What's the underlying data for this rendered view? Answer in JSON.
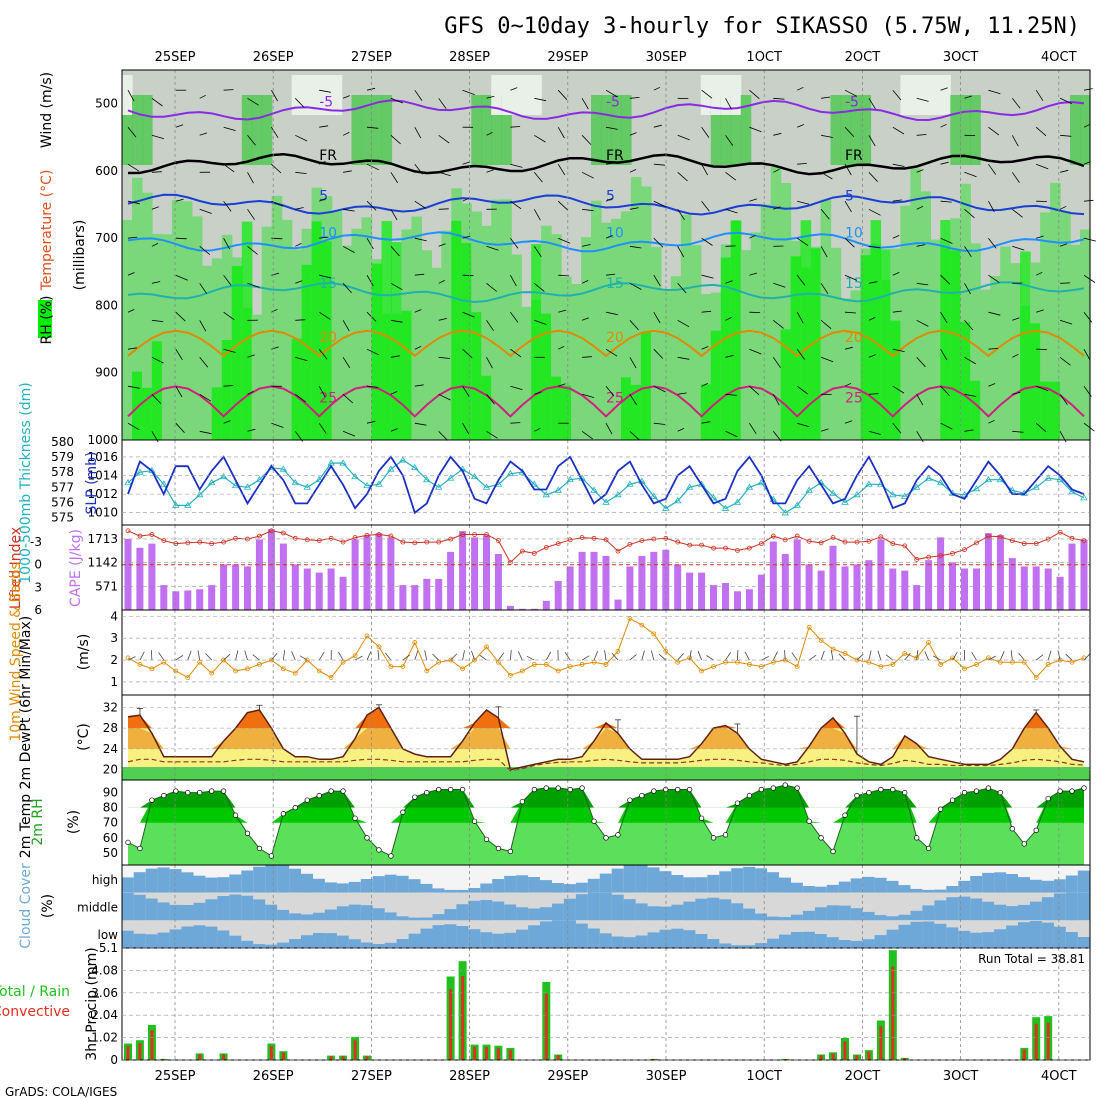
{
  "title": "GFS 0~10day 3-hourly for SIKASSO (5.75W, 11.25N)",
  "credit": "GrADS: COLA/IGES",
  "days": [
    "25SEP",
    "26SEP",
    "27SEP",
    "28SEP",
    "29SEP",
    "30SEP",
    "1OCT",
    "2OCT",
    "3OCT",
    "4OCT"
  ],
  "colors": {
    "rh_light": "#e8f0e8",
    "rh_gray": "#c8d0c8",
    "rh_mid": "#7ad87a",
    "rh_green": "#4cc84c",
    "rh_bright": "#00ee00",
    "t_m5": "#8a2be2",
    "t_fr": "#000000",
    "t_5": "#1a3fd4",
    "t_10": "#1e90ff",
    "t_15": "#20b2aa",
    "t_20": "#e08a00",
    "t_25": "#d02080",
    "slp": "#1a2fc4",
    "thick": "#20b0c0",
    "cape": "#c070f0",
    "li": "#d03020",
    "wind": "#e08a00",
    "temp_fill_hot": "#f07010",
    "temp_fill_warm": "#f0b040",
    "temp_fill_mild": "#f8f080",
    "rh_fill_dark": "#00a000",
    "rh_fill_mid": "#00c800",
    "rh_fill_light": "#5ce05c",
    "cloud_blue": "#6ea8d8",
    "cloud_gray": "#d8d8d8",
    "cloud_white": "#f4f4f4",
    "precip_total": "#20c020",
    "precip_conv": "#e03020"
  },
  "panels": {
    "upper": {
      "ylabels": [
        {
          "text": "RH (%)",
          "color": "#20a020"
        },
        {
          "text": "Temperature (°C)",
          "color": "#e05020"
        },
        {
          "text": "Wind (m/s)",
          "color": "#000000"
        }
      ],
      "axis_title": "(millibars)",
      "yticks": [
        500,
        600,
        700,
        800,
        900,
        1000
      ],
      "contours": [
        {
          "label": "-5",
          "key": "t_m5",
          "level": 510
        },
        {
          "label": "FR",
          "key": "t_fr",
          "level": 590
        },
        {
          "label": "5",
          "key": "t_5",
          "level": 650
        },
        {
          "label": "10",
          "key": "t_10",
          "level": 705
        },
        {
          "label": "15",
          "key": "t_15",
          "level": 780
        },
        {
          "label": "20",
          "key": "t_20",
          "level": 860
        },
        {
          "label": "25",
          "key": "t_25",
          "level": 950
        }
      ]
    },
    "thickness": {
      "ylabel_left": "1000-500mb Thickness (dm)",
      "ylabel_right": "SLP (mb)",
      "yticks_left": [
        575,
        576,
        577,
        578,
        579,
        580
      ],
      "yticks_right": [
        1010,
        1012,
        1014,
        1016
      ]
    },
    "instability": {
      "ylabel_left": "Lifted Index",
      "ylabel_right": "CAPE (J/kg)",
      "yticks_li": [
        -3,
        0,
        3,
        6
      ],
      "yticks_cape": [
        571,
        1142,
        1713
      ]
    },
    "wind10m": {
      "ylabel": "10m Wind Speed & Barbs",
      "unit": "(m/s)",
      "yticks": [
        1,
        2,
        3,
        4
      ]
    },
    "temperature": {
      "ylabel": "2m Temp 2m DewPt (6hr Min/Max)",
      "unit": "(°C)",
      "yticks": [
        20,
        24,
        28,
        32
      ]
    },
    "rh2m": {
      "ylabel": "2m RH",
      "unit": "(%)",
      "yticks": [
        50,
        60,
        70,
        80,
        90
      ]
    },
    "cloud": {
      "ylabel": "Cloud Cover",
      "unit": "(%)",
      "rows": [
        "high",
        "middle",
        "low"
      ]
    },
    "precip": {
      "ylabel_total": "Total / Rain",
      "ylabel_conv": "Convective",
      "axis_title": "3hr Precip (mm)",
      "yticks": [
        0,
        1.02,
        2.04,
        3.06,
        4.08,
        5.1
      ],
      "run_total": "Run Total = 38.81"
    }
  },
  "chart_data": {
    "type": "meteogram",
    "time_step_hours": 3,
    "slp_mb": [
      1012.0,
      1015.5,
      1014.5,
      1012.0,
      1015.0,
      1015.0,
      1012.5,
      1014.5,
      1016.0,
      1013.5,
      1011.0,
      1013.0,
      1015.0,
      1013.5,
      1011.0,
      1011.0,
      1013.0,
      1015.0,
      1013.0,
      1010.5,
      1012.0,
      1014.5,
      1016.0,
      1014.0,
      1010.0,
      1011.0,
      1014.0,
      1016.0,
      1014.5,
      1011.5,
      1011.0,
      1013.5,
      1015.5,
      1014.5,
      1012.5,
      1012.5,
      1015.0,
      1016.0,
      1013.5,
      1011.0,
      1012.0,
      1014.5,
      1015.5,
      1013.0,
      1011.0,
      1011.5,
      1014.0,
      1015.0,
      1013.0,
      1011.0,
      1011.5,
      1014.5,
      1016.0,
      1014.0,
      1011.0,
      1011.0,
      1013.5,
      1015.0,
      1013.0,
      1011.0,
      1011.5,
      1014.0,
      1016.0,
      1013.5,
      1010.5,
      1011.0,
      1013.5,
      1015.0,
      1014.0,
      1012.0,
      1011.5,
      1013.5,
      1015.5,
      1014.0,
      1012.0,
      1012.0,
      1013.5,
      1015.0,
      1014.0,
      1012.5,
      1012.0
    ],
    "thickness_dm": [
      577.3,
      578.0,
      578.1,
      577.2,
      575.8,
      575.8,
      576.5,
      577.3,
      577.7,
      577.1,
      577.0,
      577.5,
      578.3,
      578.2,
      577.3,
      577.0,
      577.5,
      578.6,
      578.6,
      577.7,
      577.1,
      577.2,
      578.2,
      578.8,
      578.3,
      577.5,
      577.0,
      577.6,
      578.2,
      577.7,
      577.0,
      577.2,
      577.9,
      578.0,
      577.2,
      576.5,
      576.8,
      577.5,
      577.6,
      576.8,
      576.0,
      576.5,
      577.2,
      577.4,
      576.4,
      575.6,
      576.1,
      577.0,
      577.2,
      576.3,
      575.6,
      576.0,
      577.0,
      577.3,
      576.2,
      575.3,
      575.8,
      576.8,
      577.3,
      576.6,
      576.0,
      576.5,
      577.2,
      577.2,
      576.5,
      576.4,
      577.0,
      577.6,
      577.3,
      576.6,
      576.5,
      576.9,
      577.5,
      577.5,
      576.8,
      576.6,
      577.0,
      577.6,
      577.5,
      576.7,
      576.3
    ],
    "cape_jkg": [
      1714,
      1500,
      1600,
      600,
      450,
      470,
      500,
      600,
      1100,
      1100,
      1050,
      1700,
      1950,
      1600,
      1100,
      1000,
      900,
      1000,
      800,
      1700,
      1800,
      1850,
      1750,
      600,
      600,
      750,
      750,
      1400,
      1900,
      1750,
      1800,
      1350,
      100,
      30,
      30,
      220,
      700,
      1050,
      1400,
      1400,
      1300,
      250,
      1050,
      1300,
      1400,
      1450,
      1100,
      900,
      900,
      600,
      650,
      450,
      500,
      850,
      1650,
      1350,
      1700,
      1100,
      950,
      1550,
      1050,
      1100,
      1200,
      1700,
      1000,
      950,
      600,
      1200,
      1750,
      1150,
      1000,
      1000,
      1850,
      1800,
      1250,
      1050,
      1050,
      1000,
      800,
      1600,
      1700
    ],
    "lifted_index": [
      -4.5,
      -3.8,
      -4.0,
      -3.2,
      -2.8,
      -2.9,
      -3.0,
      -2.8,
      -3.0,
      -3.5,
      -3.4,
      -3.8,
      -4.5,
      -4.2,
      -3.5,
      -3.3,
      -3.2,
      -3.5,
      -3.0,
      -3.6,
      -3.9,
      -4.0,
      -3.8,
      -3.0,
      -2.9,
      -3.0,
      -3.0,
      -3.4,
      -4.0,
      -4.0,
      -4.0,
      -3.2,
      -0.3,
      -1.8,
      -1.5,
      -2.3,
      -2.8,
      -3.3,
      -3.6,
      -3.5,
      -3.3,
      -1.8,
      -2.7,
      -3.2,
      -3.4,
      -3.5,
      -3.0,
      -2.6,
      -2.6,
      -2.2,
      -2.2,
      -1.9,
      -2.2,
      -2.8,
      -3.8,
      -3.3,
      -3.8,
      -3.1,
      -2.9,
      -3.6,
      -3.0,
      -3.0,
      -3.1,
      -3.7,
      -2.8,
      -2.5,
      -0.7,
      -1.0,
      -1.2,
      -1.5,
      -2.0,
      -2.9,
      -3.8,
      -3.7,
      -3.2,
      -2.8,
      -2.8,
      -3.4,
      -4.3,
      -3.5,
      -3.2
    ],
    "wind10m_ms": [
      2.1,
      1.8,
      1.6,
      1.9,
      1.5,
      1.2,
      1.9,
      1.4,
      2.0,
      1.5,
      1.6,
      1.8,
      2.0,
      1.6,
      1.4,
      2.0,
      1.5,
      1.2,
      1.9,
      2.2,
      3.1,
      2.6,
      1.7,
      1.7,
      2.8,
      1.5,
      1.9,
      2.0,
      1.6,
      2.0,
      2.6,
      1.9,
      1.3,
      1.5,
      1.8,
      1.8,
      1.5,
      1.7,
      1.8,
      1.9,
      1.8,
      2.4,
      3.9,
      3.6,
      3.2,
      2.4,
      1.9,
      2.1,
      1.5,
      1.7,
      1.9,
      1.9,
      1.8,
      1.7,
      1.9,
      2.0,
      1.7,
      3.5,
      2.9,
      2.5,
      2.3,
      2.0,
      1.9,
      1.7,
      1.8,
      2.3,
      2.1,
      2.8,
      1.8,
      2.1,
      1.6,
      1.8,
      2.1,
      1.9,
      1.9,
      1.9,
      1.2,
      1.8,
      2.0,
      1.9,
      2.1
    ],
    "temp2m_c": [
      30.2,
      30.5,
      27.0,
      22.5,
      22.5,
      22.5,
      22.5,
      22.5,
      25.5,
      28.0,
      31.0,
      31.5,
      28.0,
      24.0,
      22.5,
      22.5,
      22.0,
      22.0,
      22.5,
      26.0,
      30.5,
      32.0,
      28.0,
      24.0,
      23.0,
      22.5,
      22.5,
      22.5,
      25.5,
      29.0,
      31.5,
      30.0,
      20.0,
      20.5,
      21.0,
      21.5,
      22.0,
      22.0,
      22.5,
      25.5,
      29.0,
      27.0,
      24.0,
      22.0,
      22.0,
      22.0,
      22.0,
      22.5,
      25.0,
      28.0,
      28.5,
      27.0,
      24.0,
      22.0,
      21.5,
      21.0,
      21.5,
      24.5,
      28.0,
      30.0,
      27.0,
      23.0,
      21.5,
      21.0,
      22.5,
      26.5,
      25.0,
      22.5,
      22.0,
      21.5,
      21.0,
      21.0,
      21.0,
      22.0,
      24.0,
      28.0,
      31.0,
      28.0,
      24.5,
      22.0,
      21.5
    ],
    "dewpt2m_c": [
      21.5,
      22.0,
      22.0,
      21.5,
      21.5,
      21.5,
      21.5,
      21.5,
      21.5,
      21.8,
      22.0,
      22.0,
      21.8,
      21.5,
      21.5,
      21.5,
      21.5,
      21.5,
      21.5,
      21.8,
      22.0,
      22.0,
      21.8,
      21.5,
      21.5,
      21.5,
      21.5,
      21.5,
      21.5,
      21.8,
      22.0,
      22.0,
      19.8,
      20.2,
      20.8,
      21.2,
      21.4,
      21.5,
      21.5,
      21.8,
      22.0,
      21.8,
      21.5,
      21.3,
      21.3,
      21.3,
      21.3,
      21.5,
      21.8,
      22.0,
      22.0,
      21.8,
      21.5,
      21.3,
      21.0,
      20.8,
      21.0,
      21.5,
      22.0,
      22.0,
      21.8,
      21.3,
      21.0,
      20.8,
      21.2,
      21.8,
      21.5,
      21.0,
      21.0,
      20.8,
      20.8,
      20.8,
      20.8,
      21.0,
      21.3,
      21.8,
      22.0,
      21.8,
      21.5,
      21.0,
      20.9
    ],
    "tmax6h_c": [
      null,
      31.8,
      null,
      null,
      null,
      null,
      null,
      null,
      null,
      null,
      null,
      32.4,
      null,
      null,
      null,
      null,
      null,
      null,
      null,
      null,
      null,
      32.5,
      null,
      null,
      null,
      null,
      null,
      null,
      null,
      null,
      null,
      32.1,
      null,
      null,
      null,
      null,
      null,
      null,
      null,
      null,
      null,
      29.6,
      null,
      null,
      null,
      null,
      null,
      null,
      null,
      null,
      null,
      28.8,
      null,
      null,
      null,
      null,
      null,
      null,
      null,
      null,
      null,
      30.3,
      null,
      null,
      null,
      null,
      null,
      null,
      null,
      null,
      null,
      null,
      null,
      null,
      null,
      null,
      31.5,
      null,
      null,
      null,
      null
    ],
    "rh2m_pct": [
      57,
      53,
      85,
      88,
      91,
      90,
      90,
      91,
      91,
      75,
      63,
      53,
      48,
      76,
      80,
      85,
      88,
      91,
      91,
      73,
      60,
      52,
      48,
      77,
      87,
      90,
      92,
      92,
      92,
      71,
      59,
      53,
      51,
      84,
      92,
      93,
      93,
      92,
      93,
      71,
      60,
      62,
      85,
      88,
      91,
      92,
      92,
      92,
      73,
      60,
      62,
      83,
      88,
      92,
      93,
      95,
      93,
      71,
      60,
      51,
      75,
      88,
      90,
      92,
      92,
      90,
      60,
      53,
      79,
      85,
      90,
      91,
      93,
      90,
      66,
      56,
      65,
      86,
      91,
      91,
      93
    ],
    "precip_total_mm": [
      0.75,
      0.9,
      1.6,
      0.05,
      0.0,
      0.0,
      0.3,
      0.0,
      0.3,
      0.0,
      0.0,
      0.0,
      0.75,
      0.4,
      0.0,
      0.0,
      0.0,
      0.2,
      0.2,
      1.05,
      0.2,
      0.0,
      0.0,
      0.0,
      0.0,
      0.0,
      0.0,
      3.8,
      4.5,
      0.7,
      0.7,
      0.65,
      0.55,
      0.0,
      0.0,
      3.55,
      0.25,
      0.0,
      0.0,
      0.0,
      0.0,
      0.0,
      0.0,
      0.0,
      0.05,
      0.0,
      0.0,
      0.0,
      0.0,
      0.0,
      0.0,
      0.0,
      0.0,
      0.0,
      0.0,
      0.05,
      0.0,
      0.0,
      0.25,
      0.35,
      1.0,
      0.25,
      0.45,
      1.8,
      5.0,
      0.1,
      0.0,
      0.0,
      0.0,
      0.0,
      0.0,
      0.0,
      0.0,
      0.0,
      0.0,
      0.55,
      1.95,
      2.0,
      0.0,
      0.0,
      0.0
    ]
  }
}
